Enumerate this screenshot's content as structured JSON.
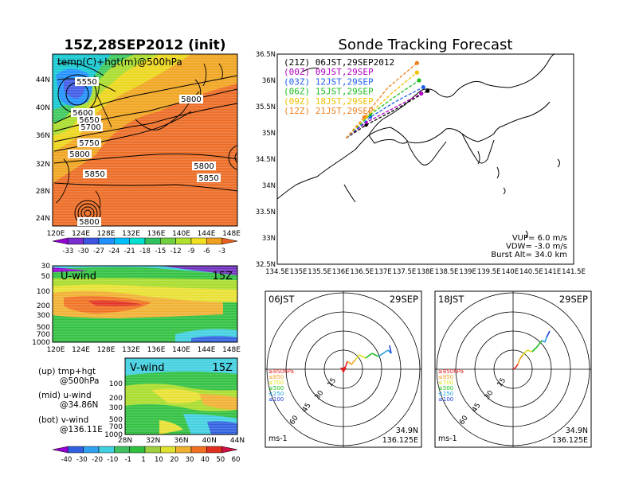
{
  "left_title": "15Z,28SEP2012 (init)",
  "right_title": "Sonde Tracking Forecast",
  "map500": {
    "label": "temp(C)+hgt(m)@500hPa",
    "lat_labels": [
      "44N",
      "40N",
      "36N",
      "32N",
      "28N",
      "24N"
    ],
    "lon_labels": [
      "120E",
      "124E",
      "128E",
      "132E",
      "136E",
      "140E",
      "144E",
      "148E"
    ],
    "contour_labels": [
      "5550",
      "5600",
      "5650",
      "5700",
      "5750",
      "5800",
      "5800",
      "5850",
      "5800",
      "5850",
      "5750",
      "5800"
    ],
    "colorbar_labels": [
      "-33",
      "-30",
      "-27",
      "-24",
      "-21",
      "-18",
      "-15",
      "-12",
      "-9",
      "-6",
      "-3"
    ],
    "colorbar_colors": [
      "#9400d3",
      "#7b2fd0",
      "#3d55e0",
      "#1e90ff",
      "#00bfff",
      "#00e0d0",
      "#30c060",
      "#70d040",
      "#b0e030",
      "#f0e020",
      "#f0a020",
      "#e86020"
    ]
  },
  "uwind": {
    "label": "U-wind",
    "time": "15Z",
    "p_labels": [
      "30",
      "50",
      "100",
      "200",
      "300",
      "500",
      "700",
      "1000"
    ],
    "lon_labels": [
      "120E",
      "124E",
      "128E",
      "132E",
      "136E",
      "140E",
      "144E",
      "148E"
    ]
  },
  "vwind": {
    "label": "V-wind",
    "time": "15Z",
    "p_labels": [
      "100",
      "200",
      "300",
      "500",
      "700",
      "1000"
    ],
    "lat_labels": [
      "28N",
      "32N",
      "36N",
      "40N",
      "44N"
    ]
  },
  "legend_text": {
    "up": "(up) tmp+hgt",
    "up2": "@500hPa",
    "mid": "(mid) u-wind",
    "mid2": "@34.86N",
    "bot": "(bot) v-wind",
    "bot2": "@136.11E"
  },
  "wind_colorbar": {
    "labels": [
      "-40",
      "-30",
      "-20",
      "-10",
      "-1",
      "1",
      "10",
      "20",
      "30",
      "40",
      "50",
      "60"
    ],
    "colors": [
      "#9400d3",
      "#3060e0",
      "#30a0f0",
      "#40d0e0",
      "#40c060",
      "#30c040",
      "#a0d040",
      "#e0e030",
      "#f0b030",
      "#f07020",
      "#e03020",
      "#d01040"
    ]
  },
  "track": {
    "lat_labels": [
      "36.5N",
      "36N",
      "35.5N",
      "35N",
      "34.5N",
      "34N",
      "33.5N",
      "33N",
      "32.5N"
    ],
    "lon_labels": [
      "134.5E",
      "135E",
      "135.5E",
      "136E",
      "136.5E",
      "137E",
      "137.5E",
      "138E",
      "138.5E",
      "139E",
      "139.5E",
      "140E",
      "140.5E",
      "141E",
      "141.5E"
    ],
    "legend": [
      {
        "text": "(21Z)  06JST,29SEP2012",
        "color": "#000000"
      },
      {
        "text": "(00Z)  09JST,29SEP",
        "color": "#b000c0"
      },
      {
        "text": "(03Z)  12JST,29SEP",
        "color": "#2060f0"
      },
      {
        "text": "(06Z)  15JST,29SEP",
        "color": "#20c020"
      },
      {
        "text": "(09Z)  18JST,29SEP",
        "color": "#f0c000"
      },
      {
        "text": "(12Z)  21JST,29SEP",
        "color": "#f08020"
      }
    ],
    "params": [
      "VUP=  6.0  m/s",
      "VDW= -3.0  m/s",
      "Burst Alt=  34.0  km"
    ]
  },
  "chart_data": [
    {
      "type": "line",
      "title": "Sonde Tracking Forecast",
      "xlim": [
        134.5,
        141.5
      ],
      "ylim": [
        32.5,
        36.5
      ],
      "series": [
        {
          "name": "(21Z)  06JST,29SEP2012",
          "x": [
            136.125,
            136.6,
            137.3,
            138.05
          ],
          "y": [
            34.9,
            35.15,
            35.45,
            35.8
          ]
        },
        {
          "name": "(00Z)  09JST,29SEP",
          "x": [
            136.125,
            136.6,
            137.2,
            137.9
          ],
          "y": [
            34.9,
            35.2,
            35.45,
            35.75
          ]
        },
        {
          "name": "(03Z)  12JST,29SEP",
          "x": [
            136.125,
            136.7,
            137.3,
            137.95
          ],
          "y": [
            34.9,
            35.3,
            35.6,
            35.87
          ]
        },
        {
          "name": "(06Z)  15JST,29SEP",
          "x": [
            136.125,
            136.7,
            137.3,
            137.85
          ],
          "y": [
            34.9,
            35.35,
            35.7,
            36.0
          ]
        },
        {
          "name": "(09Z)  18JST,29SEP",
          "x": [
            136.125,
            136.6,
            137.2,
            137.8
          ],
          "y": [
            34.9,
            35.3,
            35.75,
            36.15
          ]
        },
        {
          "name": "(12Z)  21JST,29SEP",
          "x": [
            136.125,
            136.55,
            137.1,
            137.8
          ],
          "y": [
            34.9,
            35.3,
            35.85,
            36.33
          ]
        }
      ]
    }
  ],
  "hodo1": {
    "time": "06JST",
    "date": "29SEP",
    "lat": "34.9N",
    "lon": "136.125E",
    "unit": "ms-1",
    "ring_labels": [
      "15",
      "30",
      "45",
      "60"
    ],
    "levels": [
      "≥850hPa",
      "≤850",
      "≤700",
      "≤500",
      "≤250",
      "≤100"
    ],
    "level_colors": [
      "#e02020",
      "#f0a020",
      "#e0e020",
      "#20c020",
      "#20a0e0",
      "#2040e0"
    ]
  },
  "hodo2": {
    "time": "18JST",
    "date": "29SEP",
    "lat": "34.9N",
    "lon": "136.125E",
    "unit": "ms-1",
    "ring_labels": [
      "15",
      "30",
      "45",
      "60"
    ],
    "levels": [
      "≥850hPa",
      "≤850",
      "≤700",
      "≤500",
      "≤250",
      "≤100"
    ],
    "level_colors": [
      "#e02020",
      "#f0a020",
      "#e0e020",
      "#20c020",
      "#20a0e0",
      "#2040e0"
    ]
  }
}
